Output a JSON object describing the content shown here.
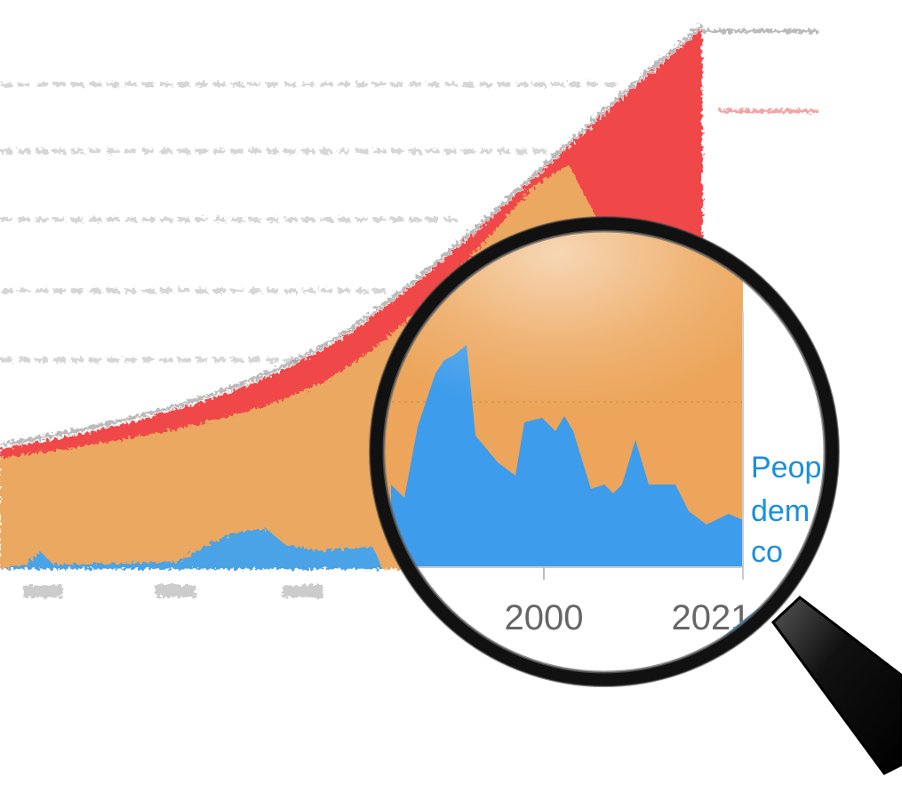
{
  "lens": {
    "axis_labels": [
      "2000",
      "2021"
    ],
    "legend_fragment": [
      "Peop",
      "dem",
      "co"
    ]
  }
}
